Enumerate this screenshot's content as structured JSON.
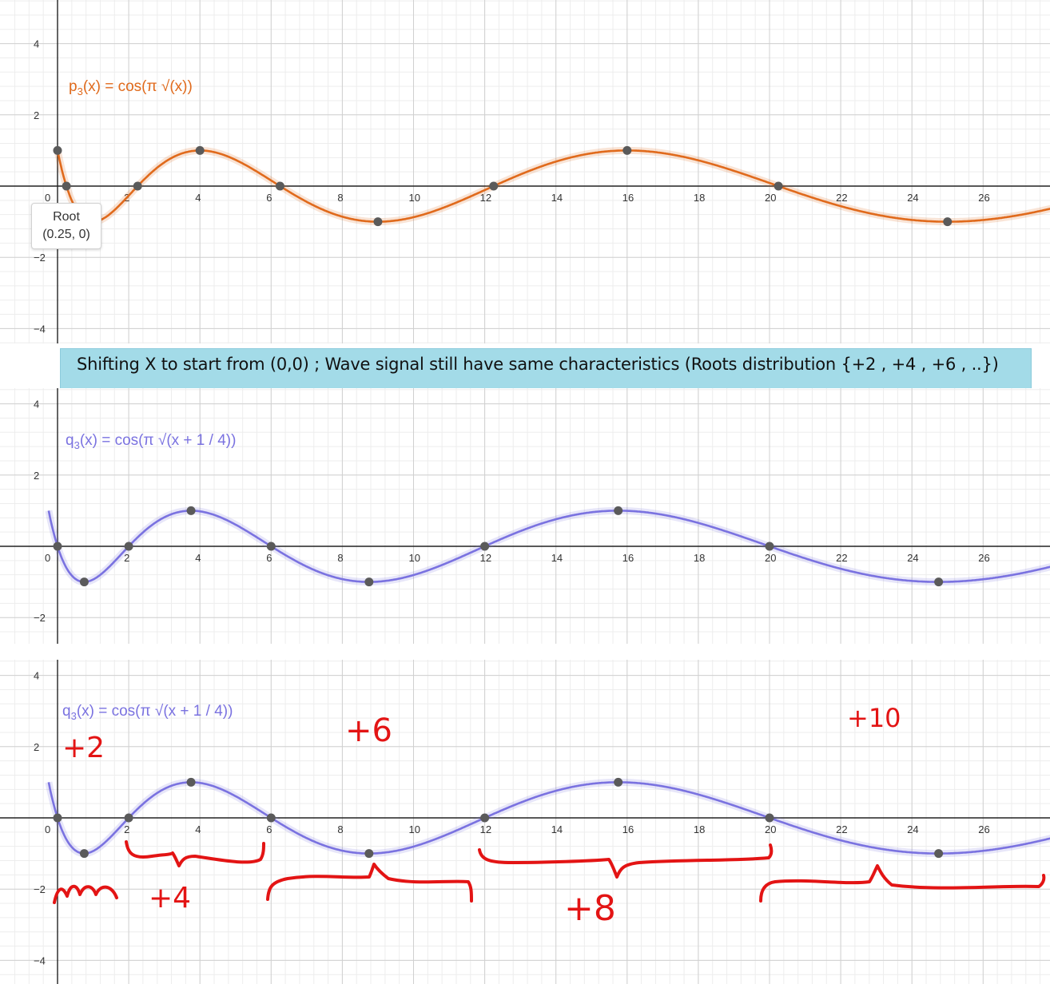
{
  "banner": {
    "text": "Shifting X to start from (0,0) ; Wave signal still have same characteristics (Roots distribution {+2 , +4 , +6 , ..})",
    "background": "#a3dbe8"
  },
  "tooltip": {
    "title": "Root",
    "coords": "(0.25, 0)"
  },
  "annotations": {
    "plus2": "+2",
    "plus4": "+4",
    "plus6": "+6",
    "plus8": "+8",
    "plus10": "+10",
    "color": "#e31414"
  },
  "chart_data": [
    {
      "type": "line",
      "function": "p3",
      "equation": {
        "name": "p",
        "sub": "3",
        "rest": "(x) = cos(π √(x))"
      },
      "color": "#e06a1c",
      "xlim": [
        -1.5,
        28.0
      ],
      "ylim": [
        -4.4,
        5.2
      ],
      "x_ticks": [
        2,
        4,
        6,
        8,
        10,
        12,
        14,
        16,
        18,
        20,
        22,
        24,
        26
      ],
      "y_ticks": [
        -4,
        -2,
        0,
        2,
        4
      ],
      "y_tick_labels": [
        "−4",
        "−2",
        "0",
        "2",
        "4"
      ],
      "xmin_curve": 0,
      "points": [
        {
          "x": 0,
          "y": 1
        },
        {
          "x": 0.25,
          "y": 0
        },
        {
          "x": 2.25,
          "y": 0
        },
        {
          "x": 4,
          "y": 1
        },
        {
          "x": 6.25,
          "y": 0
        },
        {
          "x": 9,
          "y": -1
        },
        {
          "x": 12.25,
          "y": 0
        },
        {
          "x": 16,
          "y": 1
        },
        {
          "x": 20.25,
          "y": 0
        },
        {
          "x": 25,
          "y": -1
        }
      ]
    },
    {
      "type": "line",
      "function": "q3",
      "equation": {
        "name": "q",
        "sub": "3",
        "rest": "(x) = cos(π √(x + 1 / 4))"
      },
      "color": "#7a72e0",
      "xlim": [
        -1.5,
        28.0
      ],
      "ylim": [
        -2.7,
        4.4
      ],
      "x_ticks": [
        2,
        4,
        6,
        8,
        10,
        12,
        14,
        16,
        18,
        20,
        22,
        24,
        26
      ],
      "y_ticks": [
        -2,
        0,
        2,
        4
      ],
      "y_tick_labels": [
        "−2",
        "0",
        "2",
        "4"
      ],
      "xmin_curve": -0.25,
      "points": [
        {
          "x": 0,
          "y": 0
        },
        {
          "x": 0.75,
          "y": -1
        },
        {
          "x": 2,
          "y": 0
        },
        {
          "x": 3.75,
          "y": 1
        },
        {
          "x": 6,
          "y": 0
        },
        {
          "x": 8.75,
          "y": -1
        },
        {
          "x": 12,
          "y": 0
        },
        {
          "x": 15.75,
          "y": 1
        },
        {
          "x": 20,
          "y": 0
        },
        {
          "x": 24.75,
          "y": -1
        }
      ]
    },
    {
      "type": "line",
      "function": "q3",
      "equation": {
        "name": "q",
        "sub": "3",
        "rest": "(x) = cos(π √(x + 1 / 4))"
      },
      "color": "#7a72e0",
      "xlim": [
        -1.5,
        28.0
      ],
      "ylim": [
        -4.4,
        4.4
      ],
      "x_ticks": [
        2,
        4,
        6,
        8,
        10,
        12,
        14,
        16,
        18,
        20,
        22,
        24,
        26
      ],
      "y_ticks": [
        -4,
        -2,
        0,
        2,
        4
      ],
      "y_tick_labels": [
        "−4",
        "−2",
        "0",
        "2",
        "4"
      ],
      "xmin_curve": -0.25,
      "points": [
        {
          "x": 0,
          "y": 0
        },
        {
          "x": 0.75,
          "y": -1
        },
        {
          "x": 2,
          "y": 0
        },
        {
          "x": 3.75,
          "y": 1
        },
        {
          "x": 6,
          "y": 0
        },
        {
          "x": 8.75,
          "y": -1
        },
        {
          "x": 12,
          "y": 0
        },
        {
          "x": 15.75,
          "y": 1
        },
        {
          "x": 20,
          "y": 0
        },
        {
          "x": 24.75,
          "y": -1
        }
      ]
    }
  ]
}
